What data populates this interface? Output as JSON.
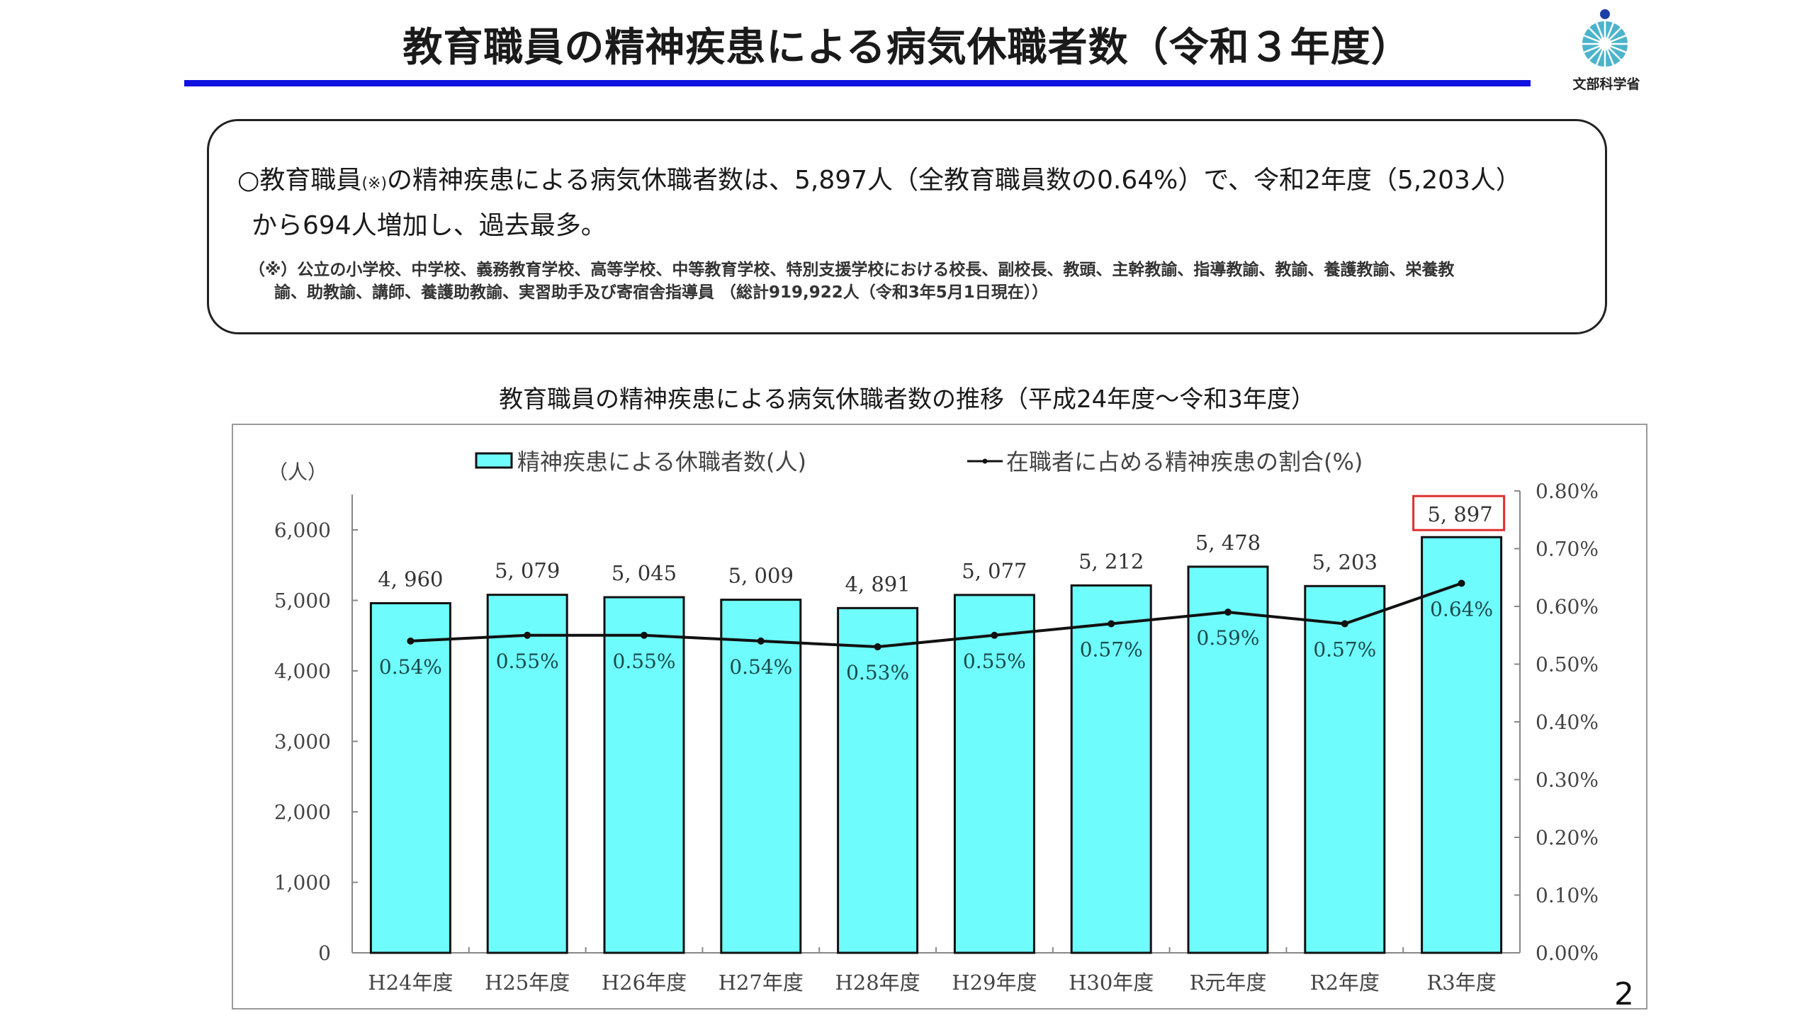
{
  "header": {
    "title": "教育職員の精神疾患による病気休職者数（令和３年度）",
    "logo_text": "文部科学省",
    "logo_icon": "mext-logo-icon"
  },
  "summary": {
    "bullet": "○",
    "line1_a": "教育職員",
    "line1_mark": "(※)",
    "line1_b": "の精神疾患による病気休職者数は、5,897人（全教育職員数の0.64%）で、令和2年度（5,203人）",
    "line2": "から694人増加し、過去最多。",
    "note1": "（※）公立の小学校、中学校、義務教育学校、高等学校、中等教育学校、特別支援学校における校長、副校長、教頭、主幹教諭、指導教諭、教諭、養護教諭、栄養教",
    "note2": "諭、助教諭、講師、養護助教諭、実習助手及び寄宿舎指導員 （総計919,922人（令和3年5月1日現在））"
  },
  "page_number": "2",
  "colors": {
    "bar_fill": "#6ffcfc",
    "bar_stroke": "#111111",
    "line": "#111111",
    "highlight_box": "#e03030",
    "title_rule": "#1010e0"
  },
  "chart_data": {
    "type": "bar",
    "title": "教育職員の精神疾患による病気休職者数の推移（平成24年度～令和3年度）",
    "xlabel": "",
    "ylabel": "（人）",
    "y2label": "",
    "categories": [
      "H24年度",
      "H25年度",
      "H26年度",
      "H27年度",
      "H28年度",
      "H29年度",
      "H30年度",
      "R元年度",
      "R2年度",
      "R3年度"
    ],
    "series": [
      {
        "name": "精神疾患による休職者数(人)",
        "type": "bar",
        "axis": "left",
        "values": [
          4960,
          5079,
          5045,
          5009,
          4891,
          5077,
          5212,
          5478,
          5203,
          5897
        ],
        "labels": [
          "4, 960",
          "5, 079",
          "5, 045",
          "5, 009",
          "4, 891",
          "5, 077",
          "5, 212",
          "5, 478",
          "5, 203",
          "5, 897"
        ]
      },
      {
        "name": "在職者に占める精神疾患の割合(%)",
        "type": "line",
        "axis": "right",
        "values": [
          0.54,
          0.55,
          0.55,
          0.54,
          0.53,
          0.55,
          0.57,
          0.59,
          0.57,
          0.64
        ],
        "labels": [
          "0.54%",
          "0.55%",
          "0.55%",
          "0.54%",
          "0.53%",
          "0.55%",
          "0.57%",
          "0.59%",
          "0.57%",
          "0.64%"
        ]
      }
    ],
    "ylim": [
      0,
      6000
    ],
    "y_ticks": [
      0,
      1000,
      2000,
      3000,
      4000,
      5000,
      6000
    ],
    "y_tick_labels": [
      "0",
      "1,000",
      "2,000",
      "3,000",
      "4,000",
      "5,000",
      "6,000"
    ],
    "y2lim": [
      0,
      0.8
    ],
    "y2_ticks": [
      0,
      0.1,
      0.2,
      0.3,
      0.4,
      0.5,
      0.6,
      0.7,
      0.8
    ],
    "y2_tick_labels": [
      "0.00%",
      "0.10%",
      "0.20%",
      "0.30%",
      "0.40%",
      "0.50%",
      "0.60%",
      "0.70%",
      "0.80%"
    ],
    "highlighted_category": "R3年度",
    "grid": false,
    "legend_position": "top"
  }
}
